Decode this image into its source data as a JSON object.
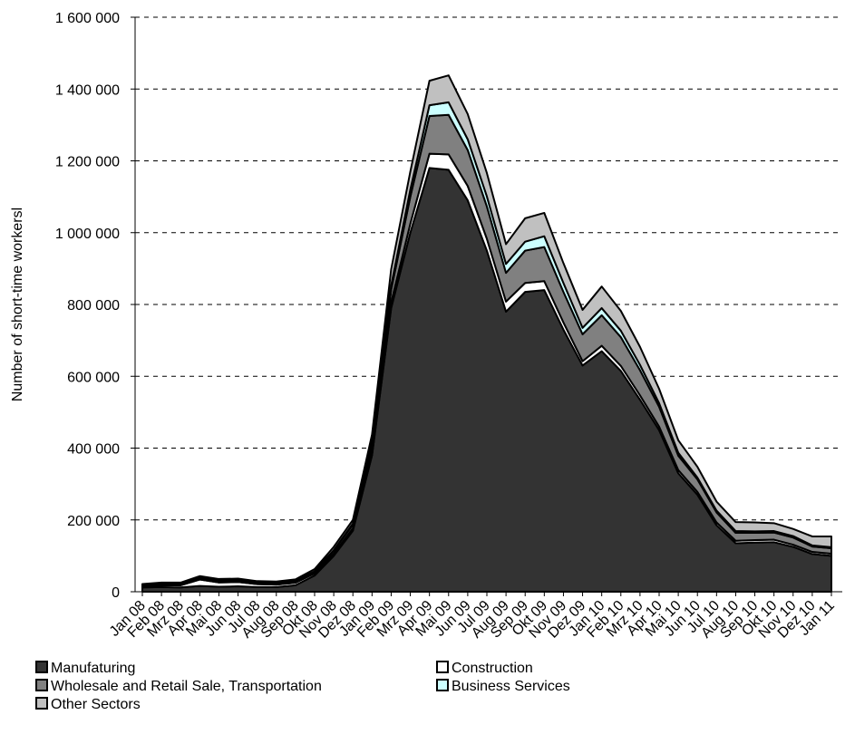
{
  "chart_data": {
    "type": "area",
    "stacked": true,
    "ylabel": "Number of short-time workersl",
    "xlabel": "",
    "ylim": [
      0,
      1600000
    ],
    "yticks": [
      0,
      200000,
      400000,
      600000,
      800000,
      1000000,
      1200000,
      1400000,
      1600000
    ],
    "ytick_labels": [
      "0",
      "200 000",
      "400 000",
      "600 000",
      "800 000",
      "1 000 000",
      "1 200 000",
      "1 400 000",
      "1 600 000"
    ],
    "grid": "horizontal dashed",
    "legend_position": "bottom",
    "categories": [
      "Jan 08",
      "Feb 08",
      "Mrz 08",
      "Apr 08",
      "Mai 08",
      "Jun 08",
      "Jul 08",
      "Aug 08",
      "Sep 08",
      "Okt 08",
      "Nov 08",
      "Dez 08",
      "Jan 09",
      "Feb 09",
      "Mrz 09",
      "Apr 09",
      "Mai 09",
      "Jun 09",
      "Jul 09",
      "Aug 09",
      "Sep 09",
      "Okt 09",
      "Nov 09",
      "Dez 09",
      "Jan 10",
      "Feb 10",
      "Mrz 10",
      "Apr 10",
      "Mai 10",
      "Jun 10",
      "Jul 10",
      "Aug 10",
      "Sep 10",
      "Okt 10",
      "Nov 10",
      "Dez 10",
      "Jan 11"
    ],
    "series": [
      {
        "name": "Manufaturing",
        "color": "#333333",
        "values": [
          12000,
          13000,
          12000,
          16000,
          14000,
          15000,
          13000,
          13000,
          18000,
          45000,
          100000,
          170000,
          380000,
          790000,
          1000000,
          1180000,
          1175000,
          1090000,
          950000,
          780000,
          835000,
          840000,
          730000,
          630000,
          670000,
          615000,
          535000,
          450000,
          330000,
          270000,
          185000,
          135000,
          137000,
          138000,
          125000,
          105000,
          100000
        ]
      },
      {
        "name": "Construction",
        "color": "#ffffff",
        "values": [
          2000,
          4000,
          6000,
          18000,
          12000,
          12000,
          8000,
          7000,
          7000,
          6000,
          6000,
          7000,
          12000,
          16000,
          25000,
          40000,
          43000,
          40000,
          33000,
          28000,
          25000,
          25000,
          20000,
          12000,
          15000,
          14000,
          12000,
          10000,
          9000,
          8000,
          8000,
          7000,
          7000,
          7000,
          6000,
          6000,
          6000
        ]
      },
      {
        "name": "Wholesale and Retail Sale, Transportation",
        "color": "#808080",
        "values": [
          4000,
          4000,
          4000,
          4000,
          4000,
          4000,
          4000,
          4000,
          4000,
          5000,
          8000,
          10000,
          20000,
          35000,
          75000,
          105000,
          110000,
          100000,
          90000,
          80000,
          90000,
          95000,
          85000,
          75000,
          85000,
          80000,
          70000,
          55000,
          40000,
          35000,
          28000,
          22000,
          20000,
          20000,
          20000,
          15000,
          15000
        ]
      },
      {
        "name": "Business Services",
        "color": "#ccffff",
        "values": [
          500,
          500,
          500,
          500,
          500,
          500,
          500,
          500,
          500,
          1000,
          2000,
          3000,
          6000,
          12000,
          20000,
          30000,
          35000,
          30000,
          28000,
          25000,
          25000,
          30000,
          25000,
          18000,
          20000,
          18000,
          15000,
          10000,
          8000,
          5000,
          5000,
          5000,
          4000,
          4000,
          4000,
          3000,
          3000
        ]
      },
      {
        "name": "Other Sectors",
        "color": "#c0c0c0",
        "values": [
          3000,
          4000,
          3000,
          5000,
          5000,
          5000,
          4000,
          4000,
          5000,
          6000,
          9000,
          10000,
          20000,
          45000,
          50000,
          68000,
          75000,
          70000,
          65000,
          55000,
          65000,
          65000,
          55000,
          50000,
          60000,
          55000,
          50000,
          40000,
          35000,
          30000,
          25000,
          25000,
          25000,
          22000,
          20000,
          25000,
          30000
        ]
      }
    ]
  }
}
